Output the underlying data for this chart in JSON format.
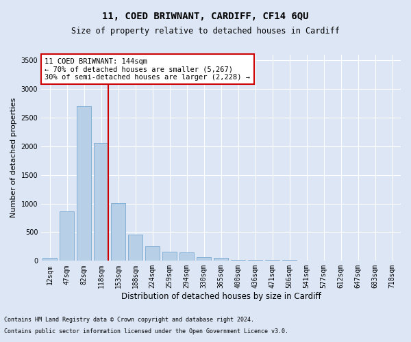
{
  "title": "11, COED BRIWNANT, CARDIFF, CF14 6QU",
  "subtitle": "Size of property relative to detached houses in Cardiff",
  "xlabel": "Distribution of detached houses by size in Cardiff",
  "ylabel": "Number of detached properties",
  "footnote1": "Contains HM Land Registry data © Crown copyright and database right 2024.",
  "footnote2": "Contains public sector information licensed under the Open Government Licence v3.0.",
  "categories": [
    "12sqm",
    "47sqm",
    "82sqm",
    "118sqm",
    "153sqm",
    "188sqm",
    "224sqm",
    "259sqm",
    "294sqm",
    "330sqm",
    "365sqm",
    "400sqm",
    "436sqm",
    "471sqm",
    "506sqm",
    "541sqm",
    "577sqm",
    "612sqm",
    "647sqm",
    "683sqm",
    "718sqm"
  ],
  "values": [
    55,
    860,
    2700,
    2060,
    1010,
    460,
    250,
    155,
    150,
    65,
    50,
    20,
    20,
    15,
    10,
    5,
    3,
    2,
    2,
    2,
    2
  ],
  "bar_color": "#b8cfe8",
  "bar_edge_color": "#7aaad0",
  "background_color": "#dce6f5",
  "grid_color": "#ffffff",
  "vline_color": "#cc0000",
  "vline_x_index": 3.43,
  "annotation_text": "11 COED BRIWNANT: 144sqm\n← 70% of detached houses are smaller (5,267)\n30% of semi-detached houses are larger (2,228) →",
  "annotation_box_color": "#ffffff",
  "annotation_box_edge": "#cc0000",
  "ylim": [
    0,
    3600
  ],
  "yticks": [
    0,
    500,
    1000,
    1500,
    2000,
    2500,
    3000,
    3500
  ],
  "title_fontsize": 10,
  "subtitle_fontsize": 8.5,
  "ylabel_fontsize": 8,
  "xlabel_fontsize": 8.5,
  "tick_fontsize": 7,
  "annotation_fontsize": 7.5,
  "footnote_fontsize": 6
}
